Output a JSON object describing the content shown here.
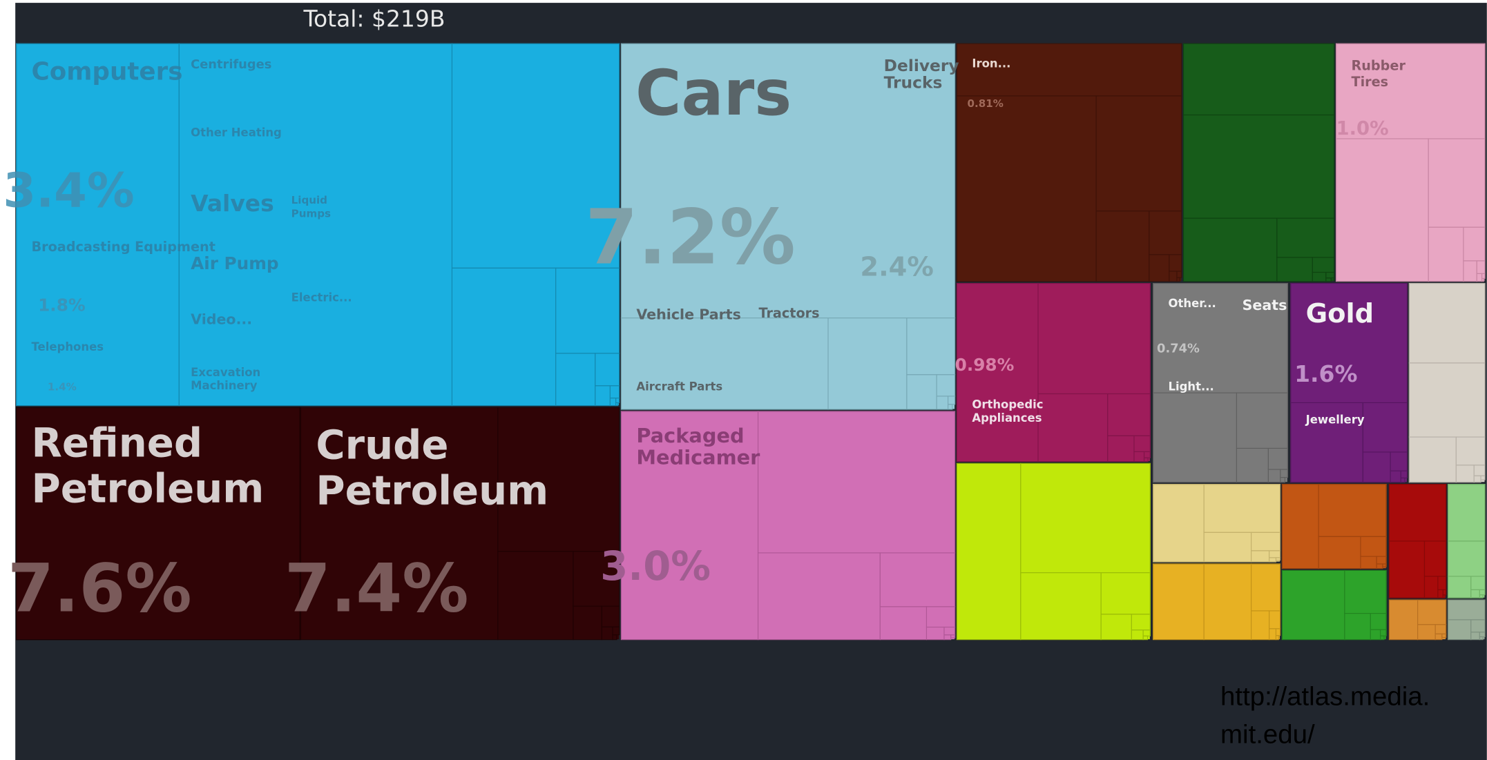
{
  "header": {
    "total": "Total: $219B"
  },
  "machinery": {
    "labels": [
      "Computers",
      "Centrifuges",
      "Other Heating",
      "Valves",
      "Liquid Pumps",
      "Broadcasting Equipment",
      "Air Pump",
      "Electric...",
      "Video...",
      "Telephones",
      "Excavation Machinery"
    ],
    "shares": [
      "3.4%",
      "1.8%",
      "1.4%"
    ]
  },
  "transport": {
    "labels": [
      "Cars",
      "Delivery Trucks",
      "Vehicle Parts",
      "Tractors",
      "Aircraft Parts"
    ],
    "shares": [
      "7.2%",
      "2.4%"
    ]
  },
  "minerals": {
    "labels": [
      "Refined Petroleum",
      "Crude Petroleum"
    ],
    "shares": [
      "7.6%",
      "7.4%"
    ]
  },
  "chemicals": {
    "labels": [
      "Packaged Medicamer"
    ],
    "shares": [
      "3.0%"
    ]
  },
  "metals": {
    "labels": [
      "Iron..."
    ],
    "shares": [
      "0.81%"
    ]
  },
  "plastics": {
    "labels": [
      "Rubber Tires"
    ],
    "shares": [
      "1.0%"
    ]
  },
  "instruments": {
    "labels": [
      "Orthopedic Appliances"
    ],
    "shares": [
      "0.98%"
    ]
  },
  "misc": {
    "labels": [
      "Other...",
      "Seats",
      "Light..."
    ],
    "shares": [
      "0.74%"
    ]
  },
  "stones": {
    "labels": [
      "Gold",
      "Jewellery"
    ],
    "shares": [
      "1.6%"
    ]
  },
  "footer": {
    "url_lines": [
      "http://atlas.media.",
      "mit.edu/"
    ]
  }
}
